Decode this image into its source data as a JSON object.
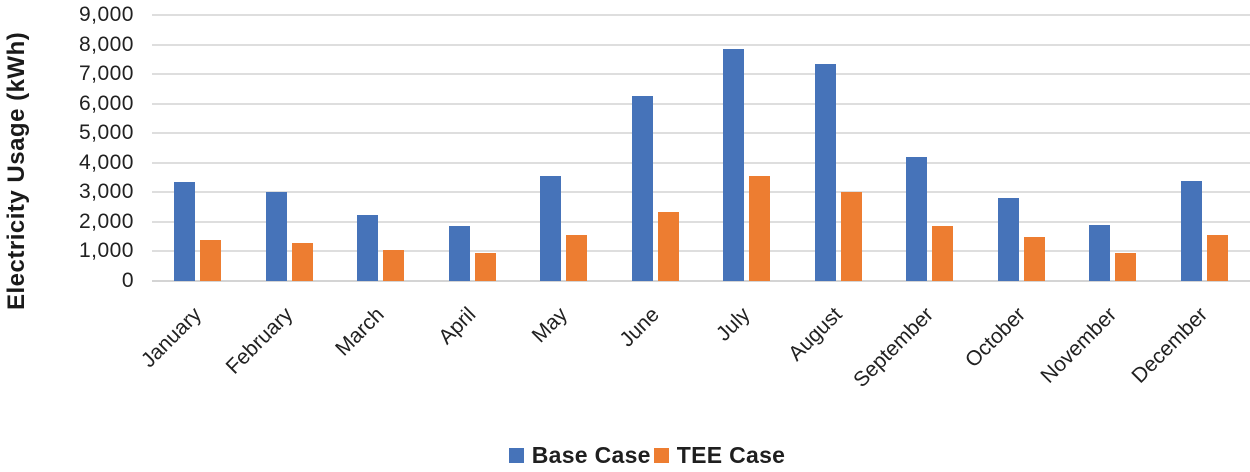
{
  "chart_data": {
    "type": "bar",
    "title": "",
    "xlabel": "",
    "ylabel": "Electricity Usage (kWh)",
    "ylim": [
      0,
      9000
    ],
    "ytick_step": 1000,
    "ytick_labels": [
      "0",
      "1,000",
      "2,000",
      "3,000",
      "4,000",
      "5,000",
      "6,000",
      "7,000",
      "8,000",
      "9,000"
    ],
    "categories": [
      "January",
      "February",
      "March",
      "April",
      "May",
      "June",
      "July",
      "August",
      "September",
      "October",
      "November",
      "December"
    ],
    "series": [
      {
        "name": "Base Case",
        "color": "#4673B9",
        "values": [
          3350,
          3000,
          2250,
          1850,
          3550,
          6250,
          7850,
          7350,
          4200,
          2800,
          1900,
          3400
        ]
      },
      {
        "name": "TEE Case",
        "color": "#ED7D31",
        "values": [
          1400,
          1300,
          1050,
          950,
          1550,
          2350,
          3550,
          3000,
          1850,
          1500,
          950,
          1550
        ]
      }
    ],
    "legend_position": "bottom",
    "grid": true,
    "gridline_color": "#DEDEDE",
    "axis_line_color": "#D4D4D4",
    "text_color": "#212121",
    "background": "#FFFFFF"
  }
}
